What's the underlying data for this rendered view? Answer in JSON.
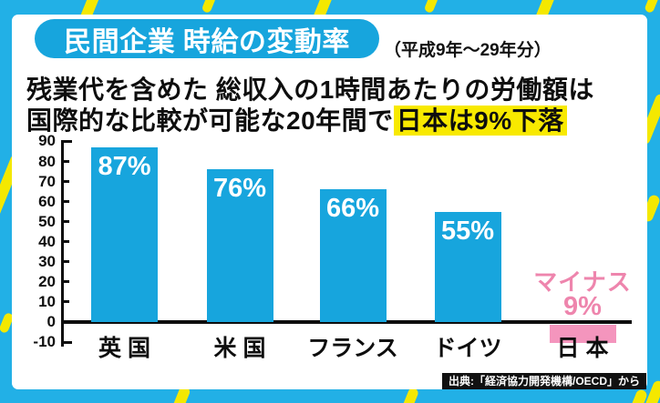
{
  "frame": {
    "bg_color": "#22B0E6",
    "stripe_color": "#F4E800",
    "panel_color": "#FFFFFF"
  },
  "header": {
    "title": "民間企業 時給の変動率",
    "period": "（平成9年～29年分）",
    "title_pill_color": "#17A5DD"
  },
  "subtitle": {
    "line1": "残業代を含めた 総収入の1時間あたりの労働額は",
    "line2_prefix": "国際的な比較が可能な20年間で",
    "line2_highlight": "日本は9%下落",
    "highlight_color": "#F8E900"
  },
  "source": "出典:「経済協力開発機構/OECD」から",
  "chart_data": {
    "type": "bar",
    "title": "民間企業 時給の変動率（平成9年～29年分）",
    "categories": [
      "英 国",
      "米 国",
      "フランス",
      "ドイツ",
      "日 本"
    ],
    "values": [
      87,
      76,
      66,
      55,
      -9
    ],
    "bar_labels": [
      "87%",
      "76%",
      "66%",
      "55%",
      ""
    ],
    "negative_label_lines": [
      "マイナス",
      "9%"
    ],
    "xlabel": "",
    "ylabel": "",
    "ylim": [
      -10,
      90
    ],
    "yticks": [
      90,
      80,
      70,
      60,
      50,
      40,
      30,
      20,
      10,
      0,
      -10
    ],
    "grid": false,
    "legend": false,
    "bar_color": "#17A5DD",
    "negative_bar_color": "#F495BD",
    "negative_text_color": "#EE85AD",
    "value_label_color": "#FFFFFF"
  }
}
